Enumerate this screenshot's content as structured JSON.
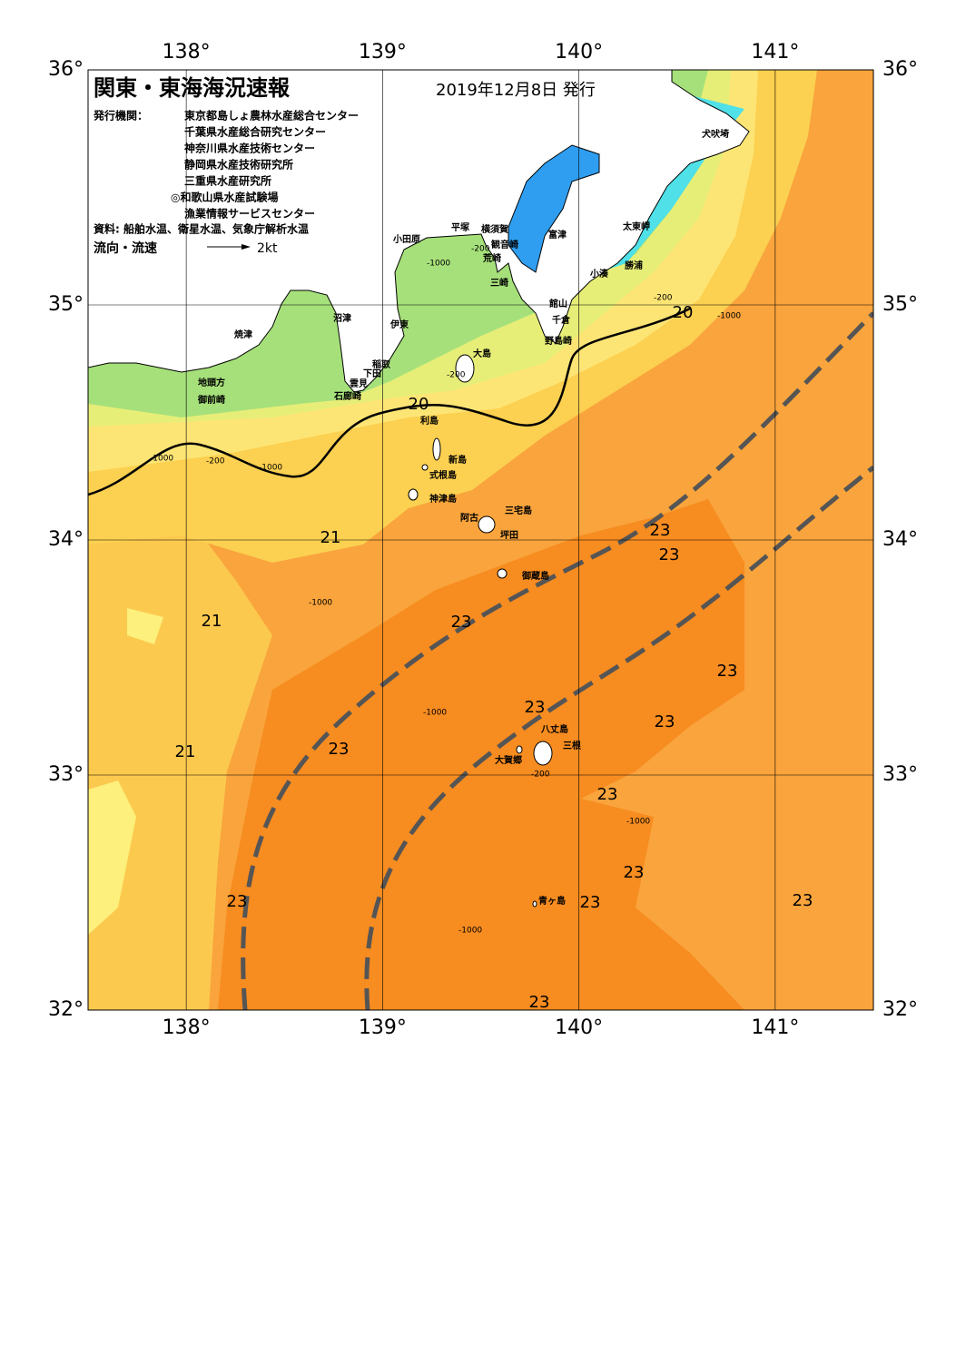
{
  "header": {
    "title": "関東・東海海況速報",
    "date": "2019年12月8日 発行",
    "publisher_label": "発行機関：",
    "publishers": [
      "東京都島しょ農林水産総合センター",
      "千葉県水産総合研究センター",
      "神奈川県水産技術センター",
      "静岡県水産技術研究所",
      "三重県水産研究所",
      "◎和歌山県水産試験場",
      "漁業情報サービスセンター"
    ],
    "source": "資料: 船舶水温、衛星水温、気象庁解析水温",
    "legend_label": "流向・流速",
    "legend_scale": "2kt"
  },
  "map": {
    "lon_ticks": [
      {
        "value": 138,
        "label": "138°"
      },
      {
        "value": 139,
        "label": "139°"
      },
      {
        "value": 140,
        "label": "140°"
      },
      {
        "value": 141,
        "label": "141°"
      }
    ],
    "lat_ticks": [
      {
        "value": 32,
        "label": "32°"
      },
      {
        "value": 33,
        "label": "33°"
      },
      {
        "value": 34,
        "label": "34°"
      },
      {
        "value": 35,
        "label": "35°"
      },
      {
        "value": 36,
        "label": "36°"
      }
    ],
    "places": [
      "犬吠埼",
      "太東岬",
      "勝浦",
      "小湊",
      "館山",
      "千倉",
      "野島崎",
      "富津",
      "横須賀",
      "観音崎",
      "荒崎",
      "三崎",
      "平塚",
      "小田原",
      "沼津",
      "伊東",
      "稲取",
      "下田",
      "雲見",
      "石廊崎",
      "焼津",
      "地頭方",
      "御前崎",
      "大島",
      "利島",
      "新島",
      "式根島",
      "神津島",
      "三宅島",
      "阿古",
      "坪田",
      "御蔵島",
      "八丈島",
      "三根",
      "大賀郷",
      "青ヶ島"
    ],
    "isotherm_labels": [
      20,
      20,
      21,
      21,
      21,
      23,
      23,
      23,
      23,
      23,
      23,
      23,
      23,
      23,
      23,
      23,
      23,
      23
    ],
    "depth_labels": [
      -200,
      -200,
      -200,
      -200,
      -200,
      -1000,
      -1000,
      -1000,
      -1000,
      -1000,
      -1000,
      -1000,
      -1000
    ]
  }
}
